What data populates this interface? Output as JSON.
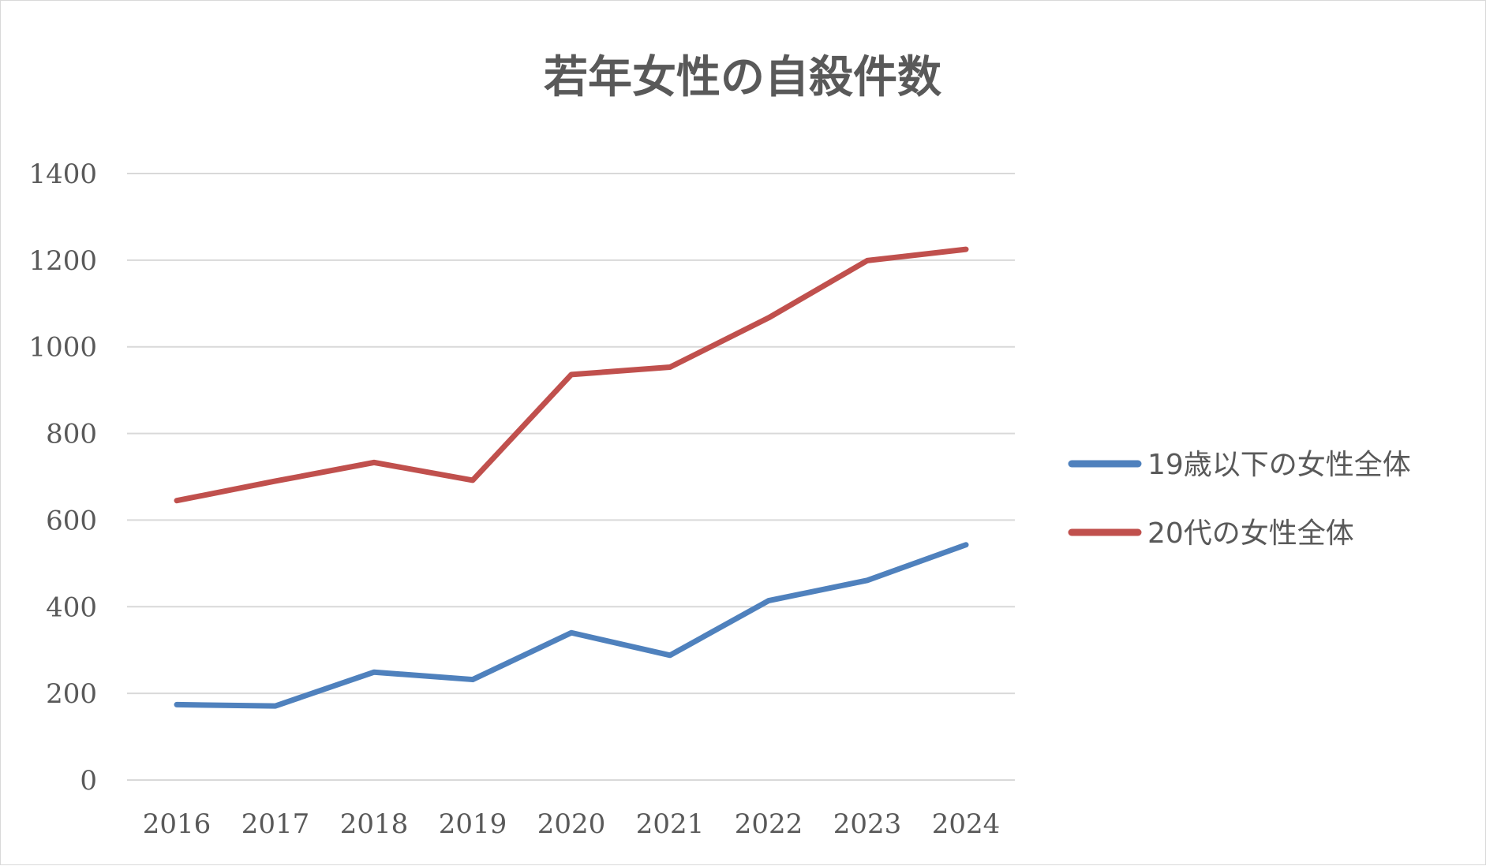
{
  "chart_data": {
    "type": "line",
    "title": "若年女性の自殺件数",
    "xlabel": "",
    "ylabel": "",
    "categories": [
      "2016",
      "2017",
      "2018",
      "2019",
      "2020",
      "2021",
      "2022",
      "2023",
      "2024"
    ],
    "ylim": [
      0,
      1400
    ],
    "yticks": [
      0,
      200,
      400,
      600,
      800,
      1000,
      1200,
      1400
    ],
    "grid": true,
    "legend_position": "right",
    "series": [
      {
        "name": "19歳以下の女性全体",
        "color": "#4f81bd",
        "values": [
          174,
          171,
          249,
          232,
          340,
          288,
          414,
          461,
          543
        ]
      },
      {
        "name": "20代の女性全体",
        "color": "#c0504d",
        "values": [
          645,
          690,
          733,
          692,
          936,
          953,
          1067,
          1199,
          1225
        ]
      }
    ]
  }
}
